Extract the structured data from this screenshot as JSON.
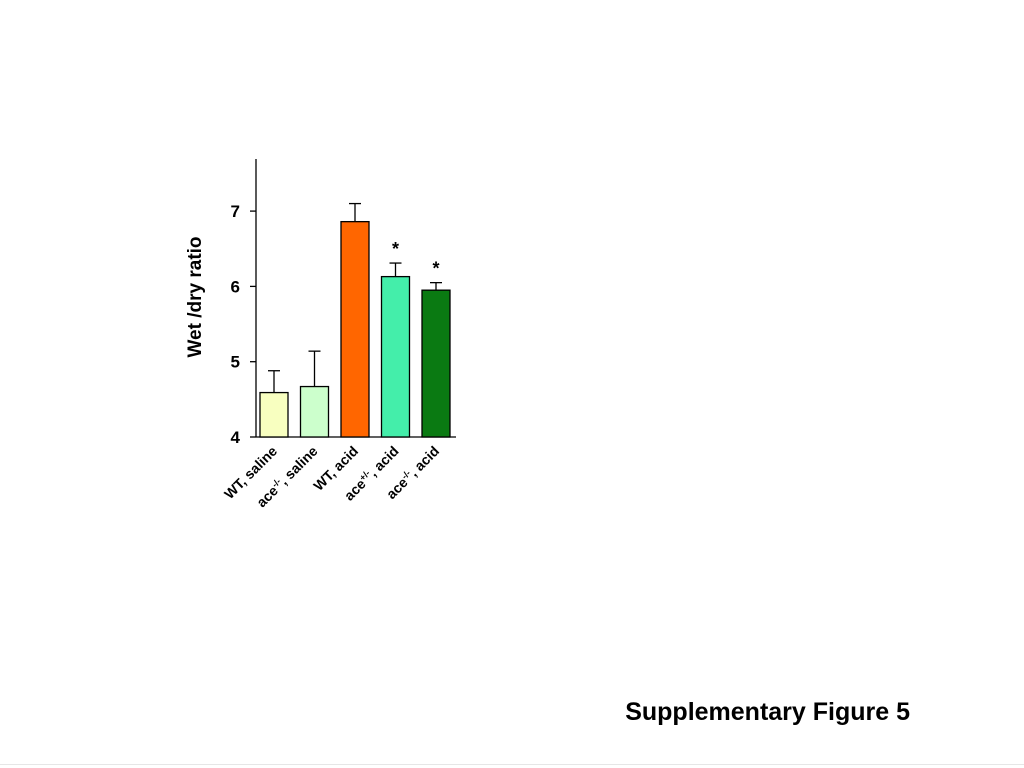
{
  "caption": "Supplementary Figure 5",
  "chart_data": {
    "type": "bar",
    "ylabel": "Wet /dry ratio",
    "ylim": [
      4,
      7.67
    ],
    "yticks": [
      4,
      5,
      6,
      7
    ],
    "categories": [
      {
        "base": "WT, saline",
        "sup": "",
        "rest": ""
      },
      {
        "base": "ace",
        "sup": "-/-",
        "rest": ", saline"
      },
      {
        "base": "WT, acid",
        "sup": "",
        "rest": ""
      },
      {
        "base": "ace",
        "sup": "+/-",
        "rest": ", acid"
      },
      {
        "base": "ace",
        "sup": "-/-",
        "rest": ", acid"
      }
    ],
    "values": [
      4.59,
      4.67,
      6.86,
      6.13,
      5.95
    ],
    "errors": [
      0.29,
      0.47,
      0.24,
      0.18,
      0.1
    ],
    "annotations": [
      "",
      "",
      "",
      "*",
      "*"
    ],
    "colors": [
      "#f8ffc0",
      "#ccffcc",
      "#ff6600",
      "#44eeaa",
      "#0a7a12"
    ],
    "grid": false,
    "legend": "none"
  }
}
